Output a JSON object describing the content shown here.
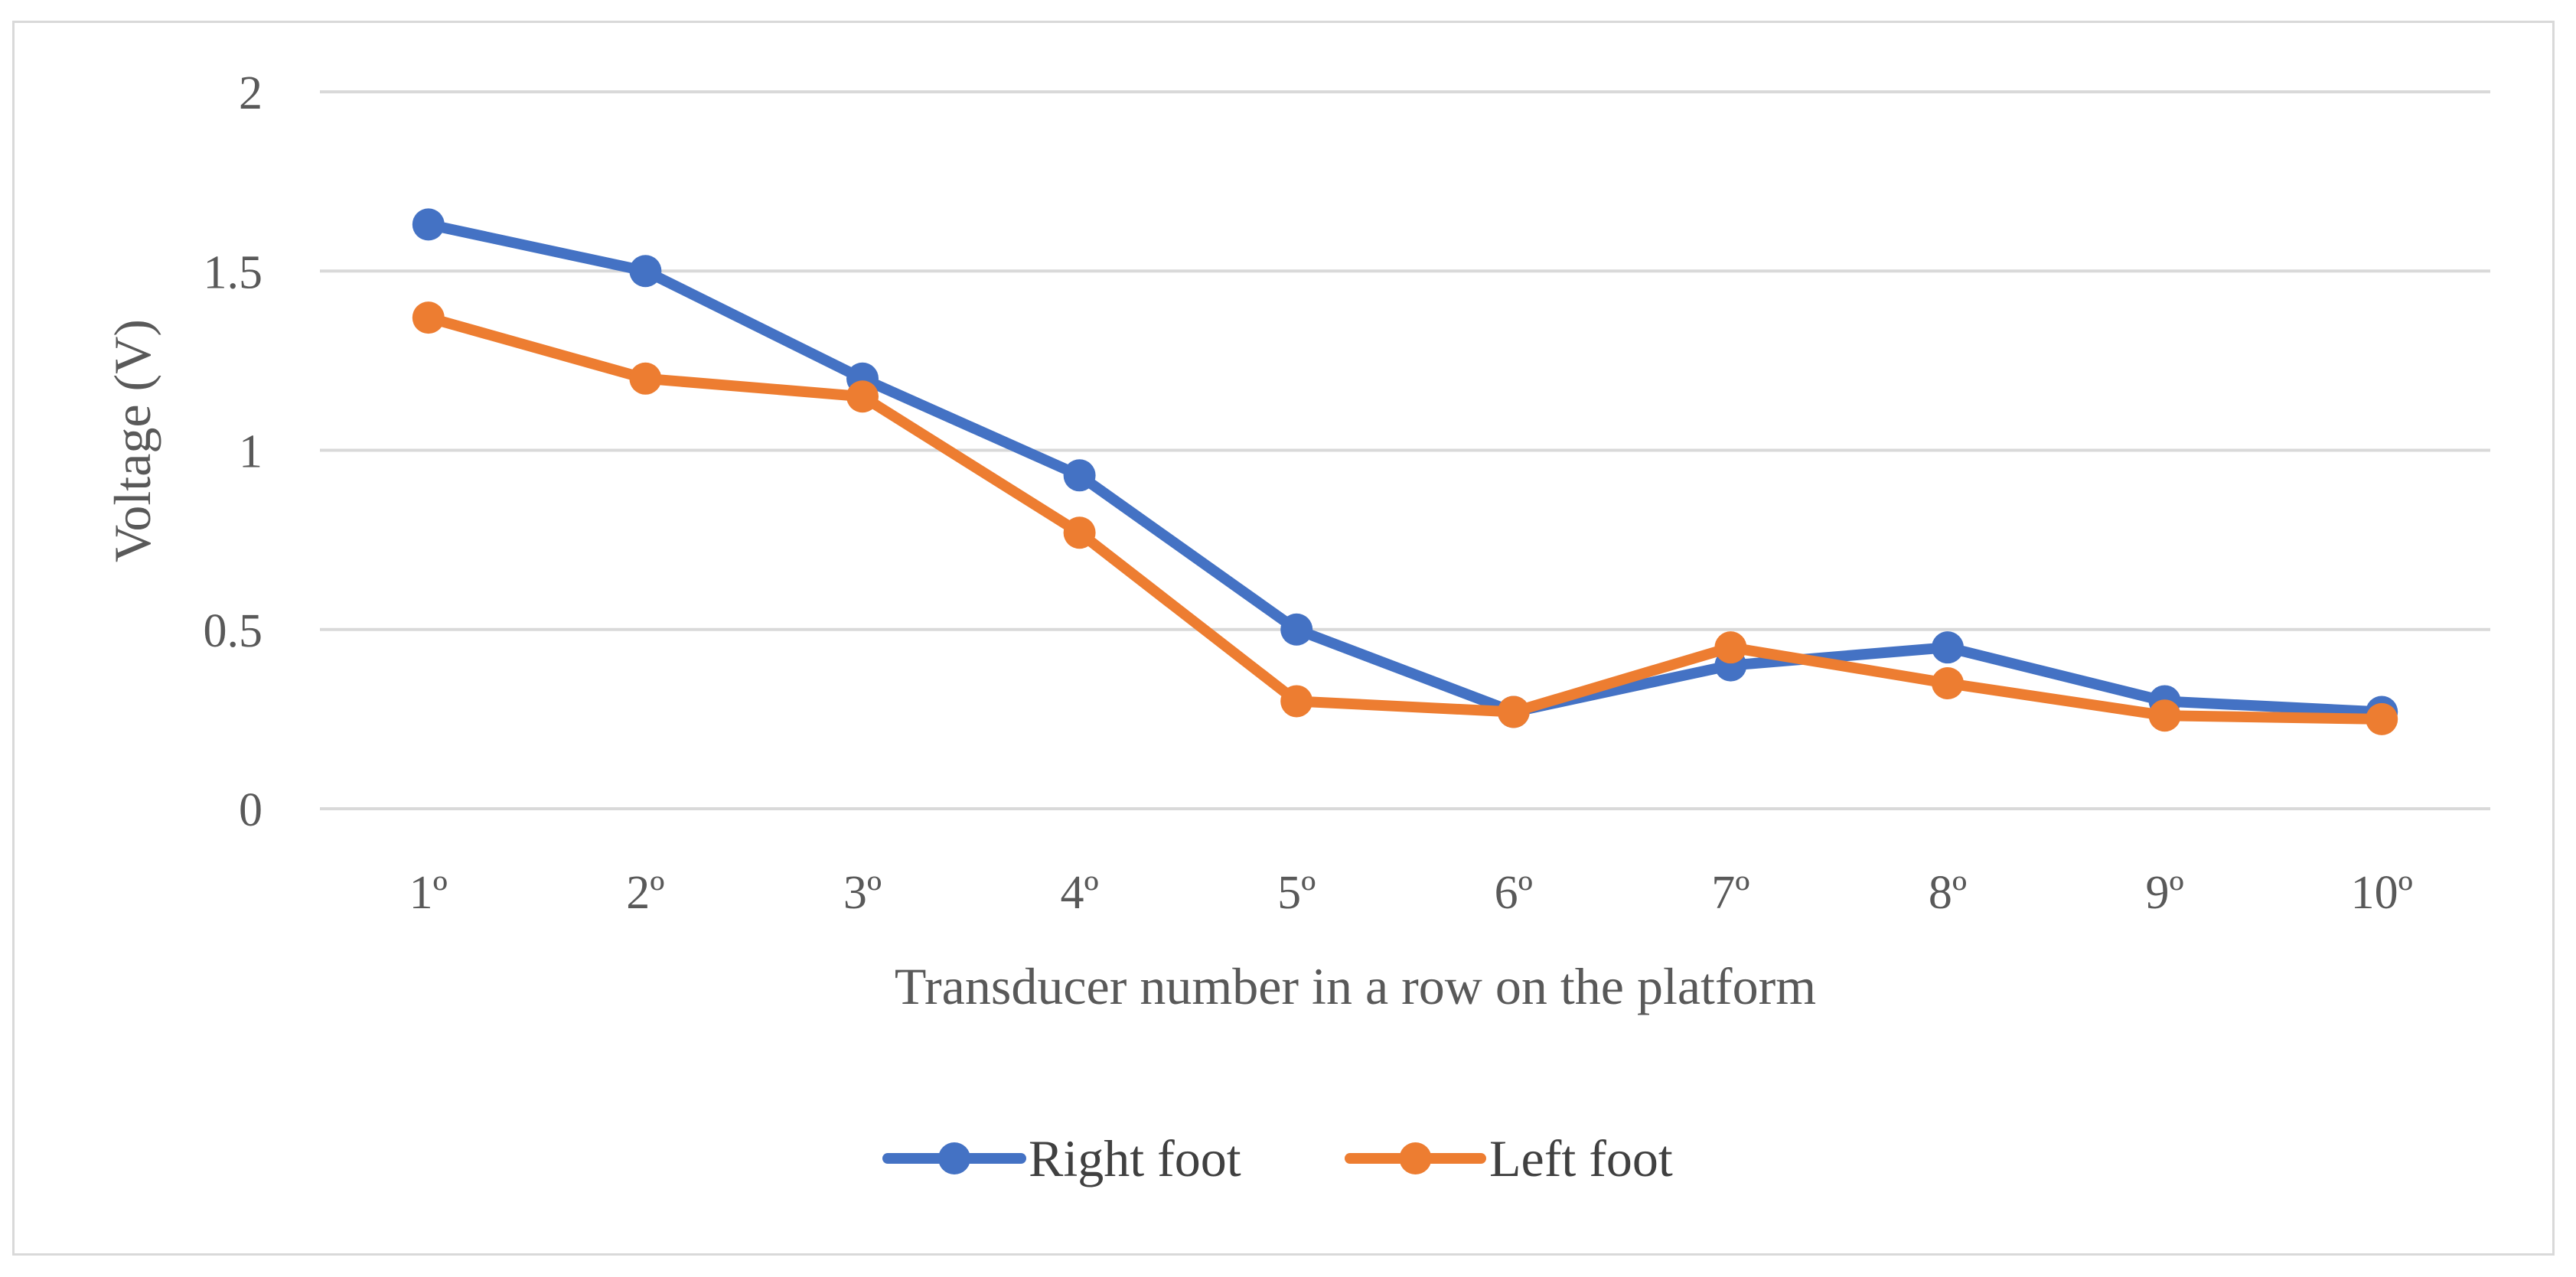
{
  "chart_data": {
    "type": "line",
    "title": "",
    "xlabel": "Transducer number in a row on the platform",
    "ylabel": "Voltage (V)",
    "ylim": [
      0,
      2
    ],
    "yticks": [
      "0",
      "0.5",
      "1",
      "1.5",
      "2"
    ],
    "ytick_values": [
      0,
      0.5,
      1,
      1.5,
      2
    ],
    "categories": [
      "1º",
      "2º",
      "3º",
      "4º",
      "5º",
      "6º",
      "7º",
      "8º",
      "9º",
      "10º"
    ],
    "grid": true,
    "legend_position": "bottom",
    "series": [
      {
        "name": "Right foot",
        "color": "#4472c4",
        "values": [
          1.63,
          1.5,
          1.2,
          0.93,
          0.5,
          0.27,
          0.4,
          0.45,
          0.3,
          0.27
        ]
      },
      {
        "name": "Left foot",
        "color": "#ed7d31",
        "values": [
          1.37,
          1.2,
          1.15,
          0.77,
          0.3,
          0.27,
          0.45,
          0.35,
          0.26,
          0.25
        ]
      }
    ]
  }
}
